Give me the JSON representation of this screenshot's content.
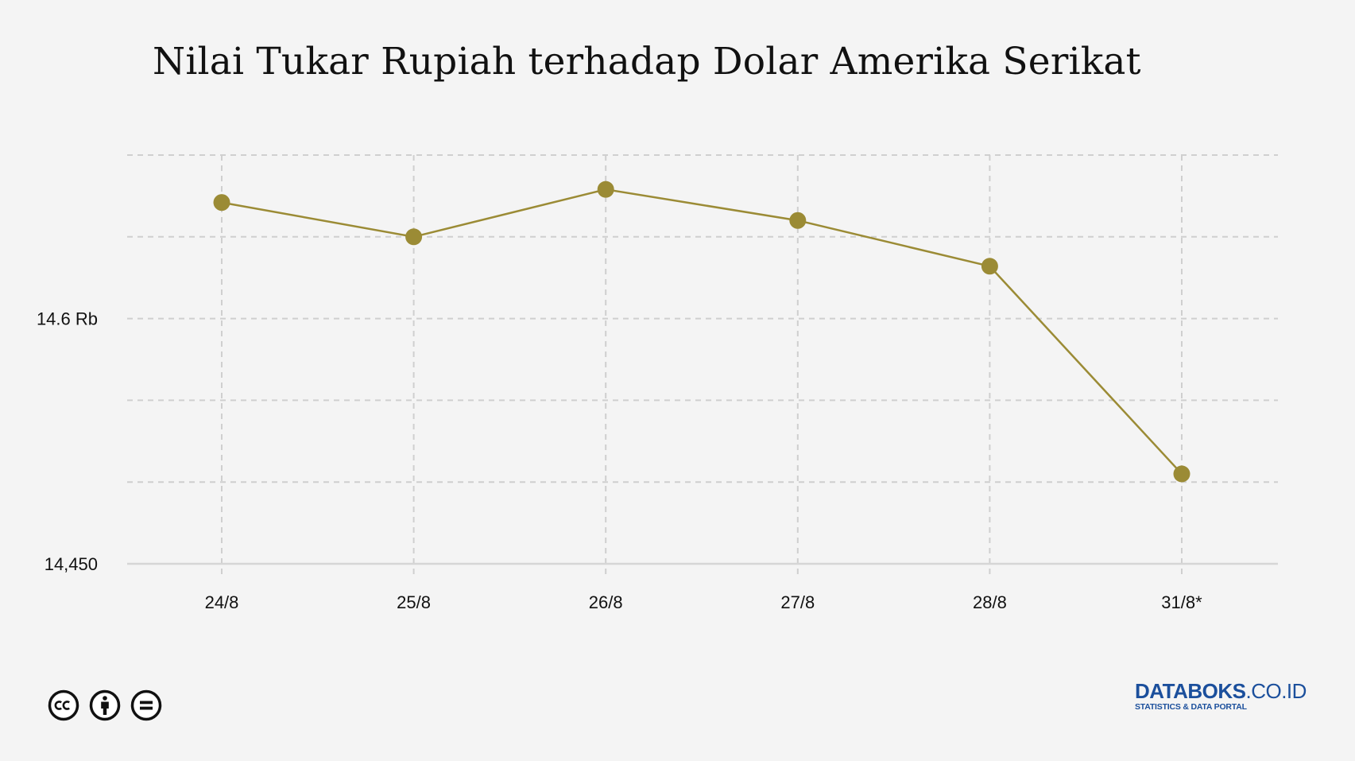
{
  "title": "Nilai Tukar Rupiah terhadap Dolar Amerika Serikat",
  "chart_data": {
    "type": "line",
    "title": "Nilai Tukar Rupiah terhadap Dolar Amerika Serikat",
    "categories": [
      "24/8",
      "25/8",
      "26/8",
      "27/8",
      "28/8",
      "31/8*"
    ],
    "series": [
      {
        "values": [
          14671,
          14650,
          14679,
          14660,
          14632,
          14505
        ]
      }
    ],
    "ylim": [
      14450,
      14700
    ],
    "y_ticks": [
      14450,
      14500,
      14550,
      14600,
      14650,
      14700
    ],
    "y_tick_labels": [
      "14,450",
      "",
      "",
      "14.6 Rb",
      "",
      ""
    ],
    "grid": true,
    "line_color": "#9b8b35",
    "marker_color": "#9b8b35",
    "grid_color": "#cfcfcf",
    "axis_color": "#d6d6d6"
  },
  "footer": {
    "license_icons": [
      "creative-commons-icon",
      "attribution-icon",
      "no-derivatives-icon"
    ],
    "brand": {
      "bold": "DATABOKS",
      "suffix": ".CO.ID",
      "tagline": "STATISTICS & DATA PORTAL",
      "color": "#1b4f9c"
    }
  }
}
